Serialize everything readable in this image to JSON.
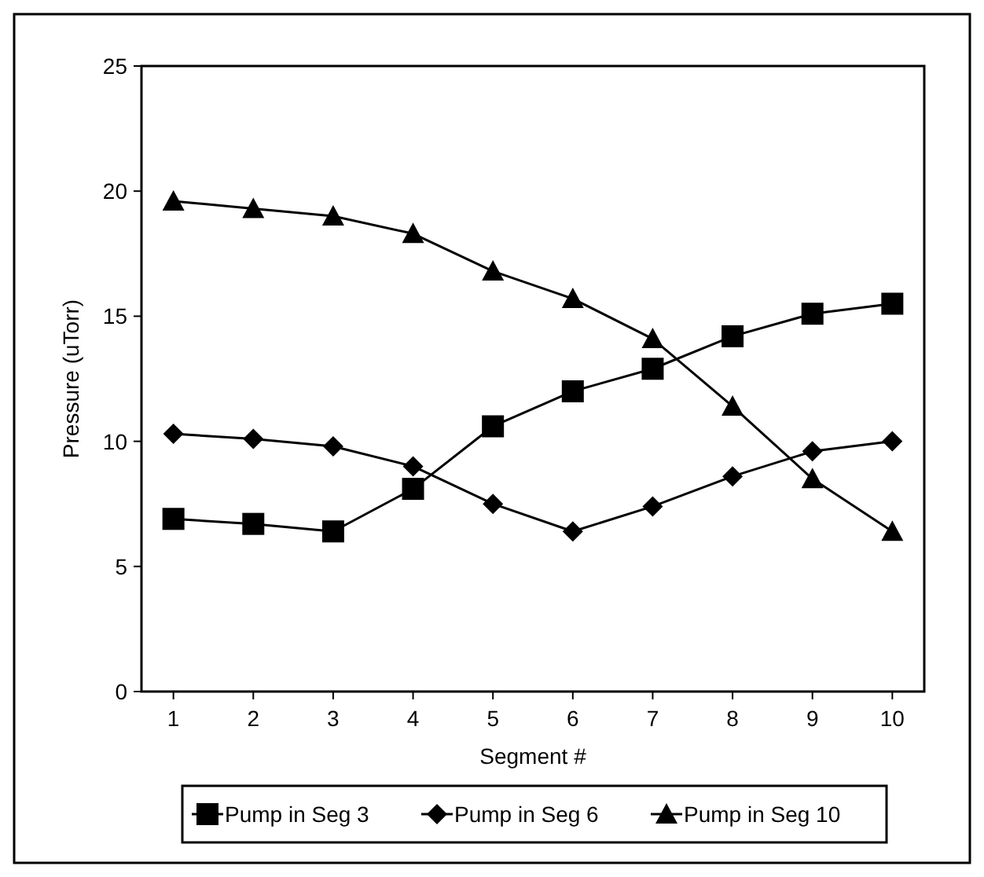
{
  "chart_data": {
    "type": "line",
    "xlabel": "Segment #",
    "ylabel": "Pressure (uTorr)",
    "x": [
      1,
      2,
      3,
      4,
      5,
      6,
      7,
      8,
      9,
      10
    ],
    "xlim": [
      0.6,
      10.4
    ],
    "xticks": [
      1,
      2,
      3,
      4,
      5,
      6,
      7,
      8,
      9,
      10
    ],
    "ylim": [
      0,
      25
    ],
    "yticks": [
      0,
      5,
      10,
      15,
      20,
      25
    ],
    "grid": false,
    "legend": "bottom",
    "series": [
      {
        "name": "Pump in Seg 3",
        "color": "#000000",
        "marker": "square",
        "values": [
          6.9,
          6.7,
          6.4,
          8.1,
          10.6,
          12.0,
          12.9,
          14.2,
          15.1,
          15.5
        ]
      },
      {
        "name": "Pump in Seg 6",
        "color": "#000000",
        "marker": "diamond",
        "values": [
          10.3,
          10.1,
          9.8,
          9.0,
          7.5,
          6.4,
          7.4,
          8.6,
          9.6,
          10.0
        ]
      },
      {
        "name": "Pump in Seg 10",
        "color": "#000000",
        "marker": "triangle",
        "values": [
          19.6,
          19.3,
          19.0,
          18.3,
          16.8,
          15.7,
          14.1,
          11.4,
          8.5,
          6.4
        ]
      }
    ]
  }
}
